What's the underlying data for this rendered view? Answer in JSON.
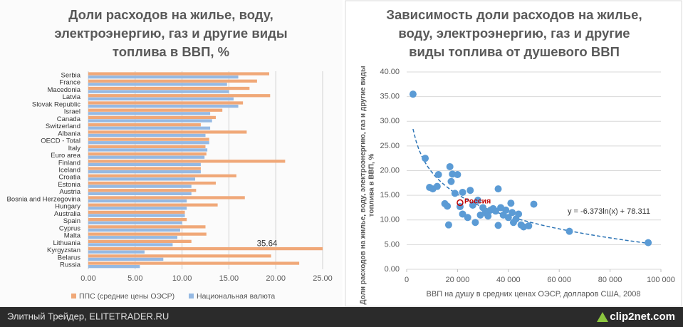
{
  "chart_data": [
    {
      "type": "bar",
      "orientation": "horizontal",
      "title": [
        "Доли расходов на жилье, воду,",
        "электроэнергию, газ и другие виды",
        "топлива в ВВП, %"
      ],
      "categories": [
        "Serbia",
        "France",
        "Macedonia",
        "Latvia",
        "Slovak Republic",
        "Israel",
        "Canada",
        "Switzerland",
        "Albania",
        "OECD - Total",
        "Italy",
        "Euro area",
        "Finland",
        "Iceland",
        "Croatia",
        "Estonia",
        "Austria",
        "Bosnia and Herzegovina",
        "Hungary",
        "Australia",
        "Spain",
        "Cyprus",
        "Malta",
        "Lithuania",
        "Kyrgyzstan",
        "Belarus",
        "Russia"
      ],
      "series": [
        {
          "name": "ППС (средние цены ОЭСР)",
          "color": "#f0a878",
          "values": [
            19.3,
            18.0,
            17.2,
            19.4,
            16.5,
            14.3,
            13.6,
            12.0,
            16.9,
            12.9,
            12.5,
            12.6,
            21.0,
            12.0,
            15.8,
            13.6,
            11.5,
            16.7,
            13.8,
            10.3,
            10.5,
            12.5,
            12.6,
            11.0,
            35.64,
            19.5,
            22.5
          ],
          "value_labels": [
            null,
            null,
            null,
            null,
            null,
            null,
            null,
            null,
            null,
            null,
            null,
            null,
            null,
            null,
            null,
            null,
            null,
            null,
            null,
            null,
            null,
            null,
            null,
            null,
            "35.64",
            null,
            null
          ]
        },
        {
          "name": "Национальная валюта",
          "color": "#95b9e3",
          "values": [
            16.0,
            14.8,
            15.0,
            15.5,
            16.0,
            13.0,
            13.2,
            13.0,
            12.5,
            12.9,
            12.7,
            12.4,
            12.0,
            12.0,
            11.4,
            11.0,
            11.0,
            10.5,
            10.5,
            10.3,
            10.0,
            9.8,
            9.5,
            9.0,
            6.0,
            8.0,
            5.5
          ]
        }
      ],
      "xlim": [
        0,
        25
      ],
      "xticks": [
        {
          "value": 0,
          "label": "0.00"
        },
        {
          "value": 5,
          "label": "5.00"
        },
        {
          "value": 10,
          "label": "10.00"
        },
        {
          "value": 15,
          "label": "15.00"
        },
        {
          "value": 20,
          "label": "20.00"
        },
        {
          "value": 25,
          "label": "25.00"
        }
      ],
      "grid": true,
      "legend": "bottom"
    },
    {
      "type": "scatter",
      "title": [
        "Зависимость доли расходов на жилье,",
        "воду, электроэнергию, газ и другие",
        "виды топлива от душевого ВВП"
      ],
      "x_label": "ВВП на душу в средних ценах ОЭСР, долларов США, 2008",
      "y_label": [
        "Доли расходов на жилье, воду, электроэнергию, газ и другие виды",
        "топлива в ВВП, %"
      ],
      "color": "#5b9bd5",
      "x": [
        2500,
        7300,
        9000,
        10300,
        12000,
        12500,
        15000,
        16000,
        16500,
        17000,
        17500,
        18000,
        19000,
        20000,
        21000,
        22000,
        22000,
        24000,
        25000,
        26000,
        27000,
        28000,
        29000,
        30000,
        31000,
        32000,
        33000,
        34000,
        35000,
        36000,
        36000,
        37000,
        38000,
        39000,
        40000,
        41000,
        41500,
        42000,
        43000,
        44000,
        45000,
        46000,
        48000,
        50000,
        64000,
        95000
      ],
      "values": [
        35.5,
        22.5,
        16.6,
        16.3,
        16.8,
        19.2,
        13.3,
        12.8,
        9.0,
        20.8,
        17.8,
        19.3,
        15.4,
        19.2,
        12.7,
        15.6,
        11.2,
        10.5,
        16.0,
        13.0,
        9.5,
        14.0,
        11.0,
        12.5,
        11.5,
        10.8,
        12.0,
        12.3,
        11.8,
        16.3,
        8.9,
        12.5,
        11.0,
        12.0,
        10.5,
        13.4,
        11.5,
        9.5,
        10.2,
        11.2,
        9.0,
        8.6,
        8.8,
        13.2,
        7.7,
        5.4
      ],
      "annotations": [
        {
          "text": "Россия",
          "x": 21000,
          "y": 13.5,
          "color": "#c00000"
        }
      ],
      "trendline": {
        "type": "log",
        "a": -6.373,
        "b": 78.311,
        "label": "y = -6.373ln(x) + 78.311",
        "color": "#2e75b6"
      },
      "xlim": [
        0,
        100000
      ],
      "xticks": [
        0,
        {
          "value": 20000,
          "label": "20 000"
        },
        {
          "value": 40000,
          "label": "40 000"
        },
        {
          "value": 60000,
          "label": "60 000"
        },
        {
          "value": 80000,
          "label": "80 000"
        },
        {
          "value": 100000,
          "label": "100 000"
        }
      ],
      "ylim": [
        0,
        40
      ],
      "yticks": [
        {
          "value": 0,
          "label": "0.00"
        },
        {
          "value": 5,
          "label": "5.00"
        },
        {
          "value": 10,
          "label": "10.00"
        },
        {
          "value": 15,
          "label": "15.00"
        },
        {
          "value": 20,
          "label": "20.00"
        },
        {
          "value": 25,
          "label": "25.00"
        },
        {
          "value": 30,
          "label": "30.00"
        },
        {
          "value": 35,
          "label": "35.00"
        },
        {
          "value": 40,
          "label": "40.00"
        }
      ],
      "grid": true
    }
  ],
  "footer": {
    "left": "Элитный Трейдер, ELITETRADER.RU",
    "right": "clip2net.com"
  }
}
